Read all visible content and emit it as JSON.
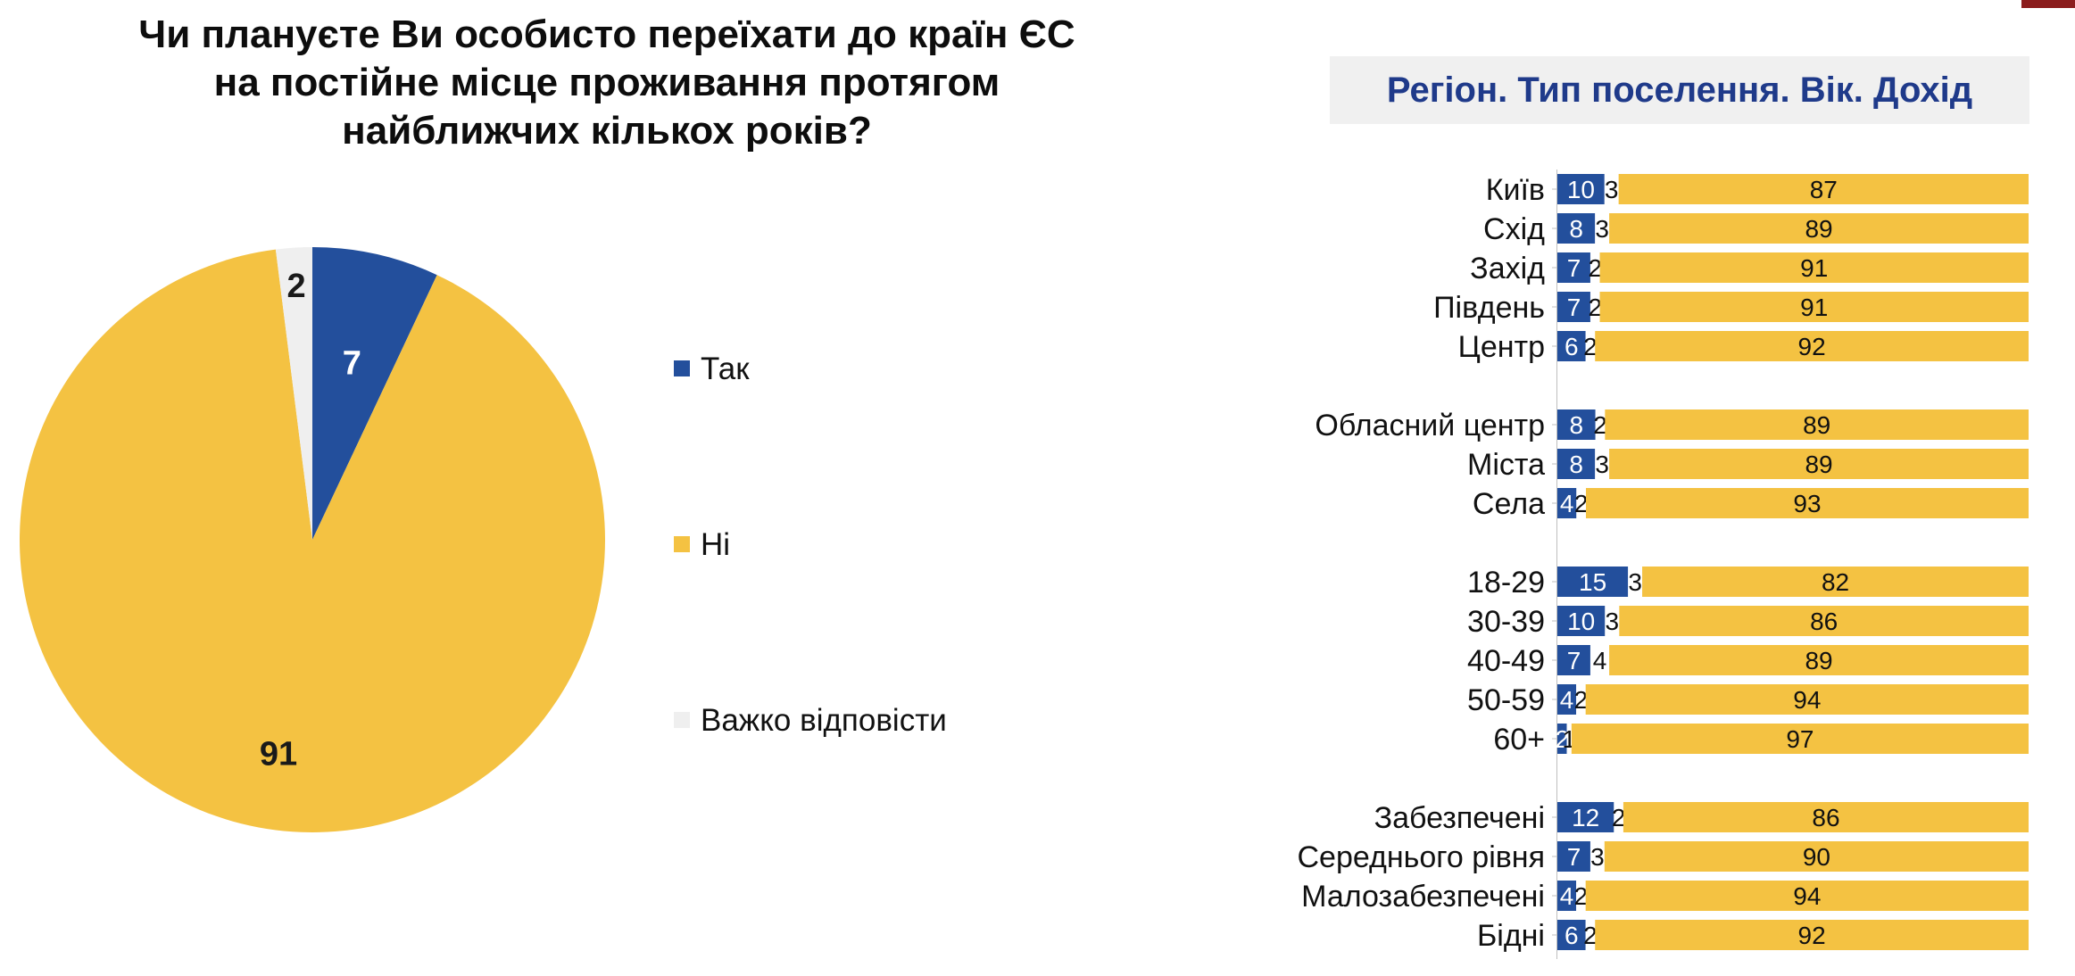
{
  "title_lines": [
    "Чи плануєте Ви особисто переїхати до країн ЄС",
    "на постійне місце проживання протягом",
    "найближчих кількох років?"
  ],
  "colors": {
    "yes": "#234f9c",
    "no": "#f4c242",
    "hard": "#efefef",
    "title_blue": "#1f3a8a",
    "corner": "#8b1d1d"
  },
  "chart_data": [
    {
      "type": "pie",
      "title": "Чи плануєте Ви особисто переїхати до країн ЄС на постійне місце проживання протягом найближчих кількох років?",
      "slices": [
        {
          "label": "Так",
          "value": 7,
          "color": "#234f9c"
        },
        {
          "label": "Ні",
          "value": 91,
          "color": "#f4c242"
        },
        {
          "label": "Важко відповісти",
          "value": 2,
          "color": "#efefef"
        }
      ],
      "legend_position": "right"
    },
    {
      "type": "bar",
      "orientation": "horizontal",
      "stacked": true,
      "title": "Регіон. Тип поселення. Вік. Дохід",
      "groups": [
        {
          "name": "Регіон",
          "categories": [
            "Київ",
            "Схід",
            "Захід",
            "Південь",
            "Центр"
          ],
          "yes": [
            10,
            8,
            7,
            7,
            6
          ],
          "hard": [
            3,
            3,
            2,
            2,
            2
          ],
          "no": [
            87,
            89,
            91,
            91,
            92
          ]
        },
        {
          "name": "Тип поселення",
          "categories": [
            "Обласний центр",
            "Міста",
            "Села"
          ],
          "yes": [
            8,
            8,
            4
          ],
          "hard": [
            2,
            3,
            2
          ],
          "no": [
            89,
            89,
            93
          ]
        },
        {
          "name": "Вік",
          "categories": [
            "18-29",
            "30-39",
            "40-49",
            "50-59",
            "60+"
          ],
          "yes": [
            15,
            10,
            7,
            4,
            2
          ],
          "hard": [
            3,
            3,
            4,
            2,
            1
          ],
          "no": [
            82,
            86,
            89,
            94,
            97
          ]
        },
        {
          "name": "Дохід",
          "categories": [
            "Забезпечені",
            "Середнього рівня",
            "Малозабезпечені",
            "Бідні"
          ],
          "yes": [
            12,
            7,
            4,
            6
          ],
          "hard": [
            2,
            3,
            2,
            2
          ],
          "no": [
            86,
            90,
            94,
            92
          ]
        }
      ],
      "xlim": [
        0,
        100
      ],
      "series_order": [
        "yes",
        "hard",
        "no"
      ]
    }
  ]
}
